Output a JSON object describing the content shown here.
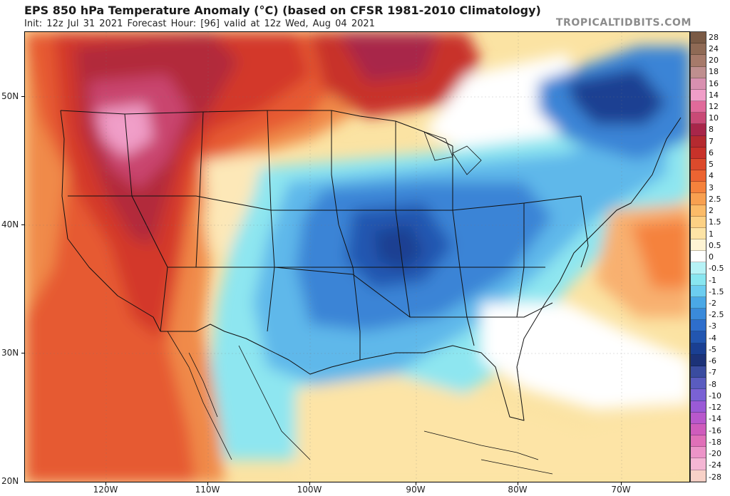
{
  "header": {
    "title": "EPS 850 hPa Temperature Anomaly (°C) (based on CFSR 1981-2010 Climatology)",
    "subtitle": "Init: 12z Jul 31 2021   Forecast Hour: [96]   valid at 12z Wed, Aug 04 2021",
    "brand": "TROPICALTIDBITS.COM"
  },
  "map": {
    "lat_labels": [
      "50N",
      "40N",
      "30N",
      "20N"
    ],
    "lon_labels": [
      "120W",
      "110W",
      "100W",
      "90W",
      "80W",
      "70W"
    ],
    "icon": "contiguous-us-map"
  },
  "colorbar": {
    "levels": [
      {
        "label": "28",
        "color": "#7a5a45"
      },
      {
        "label": "24",
        "color": "#8f6a55"
      },
      {
        "label": "20",
        "color": "#a67a6a"
      },
      {
        "label": "18",
        "color": "#bf8f8f"
      },
      {
        "label": "16",
        "color": "#d890b0"
      },
      {
        "label": "14",
        "color": "#f09ec8"
      },
      {
        "label": "12",
        "color": "#e06a9a"
      },
      {
        "label": "10",
        "color": "#c94a76"
      },
      {
        "label": "8",
        "color": "#a8264a"
      },
      {
        "label": "7",
        "color": "#b52a30"
      },
      {
        "label": "6",
        "color": "#c8322a"
      },
      {
        "label": "5",
        "color": "#dc4a2c"
      },
      {
        "label": "4",
        "color": "#ec6432"
      },
      {
        "label": "3",
        "color": "#f5823c"
      },
      {
        "label": "2.5",
        "color": "#f8a050"
      },
      {
        "label": "2",
        "color": "#fbbb68"
      },
      {
        "label": "1.5",
        "color": "#fcd184"
      },
      {
        "label": "1",
        "color": "#fde4a6"
      },
      {
        "label": "0.5",
        "color": "#fef4d4"
      },
      {
        "label": "0",
        "color": "#ffffff"
      },
      {
        "label": "-0.5",
        "color": "#b6f2f6"
      },
      {
        "label": "-1",
        "color": "#88e6f0"
      },
      {
        "label": "-1.5",
        "color": "#6ccdf0"
      },
      {
        "label": "-2",
        "color": "#4aa8e6"
      },
      {
        "label": "-2.5",
        "color": "#3a8ada"
      },
      {
        "label": "-3",
        "color": "#2e6ecc"
      },
      {
        "label": "-4",
        "color": "#2256b0"
      },
      {
        "label": "-5",
        "color": "#1a3f92"
      },
      {
        "label": "-6",
        "color": "#1c3278"
      },
      {
        "label": "-7",
        "color": "#3a4ca0"
      },
      {
        "label": "-8",
        "color": "#5a5cc0"
      },
      {
        "label": "-10",
        "color": "#7a62d4"
      },
      {
        "label": "-12",
        "color": "#9a5ad6"
      },
      {
        "label": "-14",
        "color": "#b858cc"
      },
      {
        "label": "-16",
        "color": "#cf5cbc"
      },
      {
        "label": "-18",
        "color": "#e070b8"
      },
      {
        "label": "-20",
        "color": "#ec94c8"
      },
      {
        "label": "-24",
        "color": "#f4b6d4"
      },
      {
        "label": "-28",
        "color": "#f8d2c8"
      }
    ]
  }
}
